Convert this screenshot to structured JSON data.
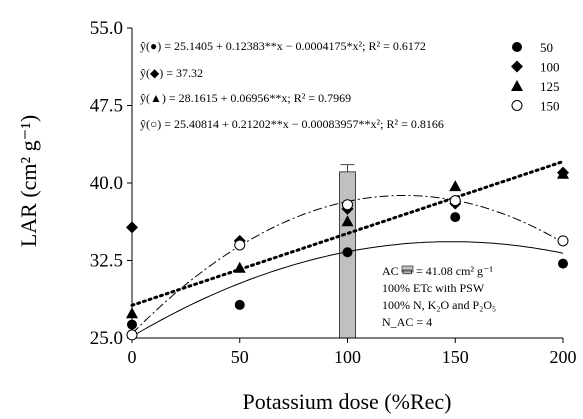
{
  "chart_data": {
    "type": "scatter",
    "xlabel": "Potassium dose (%Rec)",
    "ylabel": "LAR (cm² g⁻¹)",
    "xlim": [
      0,
      200
    ],
    "ylim": [
      25.0,
      55.0
    ],
    "x_ticks": [
      "0",
      "50",
      "100",
      "150",
      "200"
    ],
    "y_ticks": [
      "25.0",
      "32.5",
      "40.0",
      "47.5",
      "55.0"
    ],
    "x": [
      0,
      50,
      100,
      150,
      200
    ],
    "series": [
      {
        "name": "50",
        "marker": "filled-circle",
        "values": [
          26.3,
          28.2,
          33.3,
          36.7,
          32.2
        ],
        "fit": {
          "type": "quadratic",
          "coeffs": [
            25.1405,
            0.12383,
            -0.0004175
          ],
          "style": "solid"
        },
        "equation": "ŷ(●) = 25.1405 + 0.12383**x − 0.0004175*x²; R² = 0.6172"
      },
      {
        "name": "100",
        "marker": "filled-diamond",
        "values": [
          35.7,
          34.4,
          37.5,
          38.0,
          41.0
        ],
        "fit": {
          "type": "constant",
          "coeffs": [
            37.32
          ],
          "style": "none"
        },
        "equation": "ŷ(◆) = 37.32"
      },
      {
        "name": "125",
        "marker": "filled-triangle",
        "values": [
          27.4,
          31.8,
          36.3,
          39.7,
          40.9
        ],
        "fit": {
          "type": "linear",
          "coeffs": [
            28.1615,
            0.06956
          ],
          "style": "dotted"
        },
        "equation": "ŷ(▲) = 28.1615 + 0.06956**x; R² = 0.7969"
      },
      {
        "name": "150",
        "marker": "open-circle",
        "values": [
          25.3,
          34.0,
          37.9,
          38.3,
          34.4
        ],
        "fit": {
          "type": "quadratic",
          "coeffs": [
            25.40814,
            0.21202,
            -0.00083957
          ],
          "style": "dash-dot"
        },
        "equation": "ŷ(○) = 25.40814 + 0.21202**x − 0.00083957**x²; R² = 0.8166"
      }
    ],
    "reference_bar": {
      "x": 100,
      "value": 41.08,
      "error": 0.7,
      "color": "#c0c0c0"
    },
    "annotation": [
      "AC ▭ = 41.08 cm² g⁻¹",
      "100% ETc with PSW",
      "100% N, K₂O and P₂O₅",
      "N_AC = 4"
    ],
    "legend_position": "right, below equations",
    "grid": false
  },
  "labels": {
    "eq1": "ŷ(●) = 25.1405 + 0.12383**x − 0.0004175*x²; R² = 0.6172",
    "eq2": "ŷ(◆) = 37.32",
    "eq3": "ŷ(▲) = 28.1615 + 0.06956**x; R² = 0.7969",
    "eq4": "ŷ(○) = 25.40814 + 0.21202**x − 0.00083957**x²; R² = 0.8166",
    "ann1": "AC ▭ = 41.08 cm² g⁻¹",
    "ann2": "100% ETc with PSW",
    "ann3": "100% N, K₂O and P₂O₅",
    "ann4": "N_AC = 4"
  }
}
